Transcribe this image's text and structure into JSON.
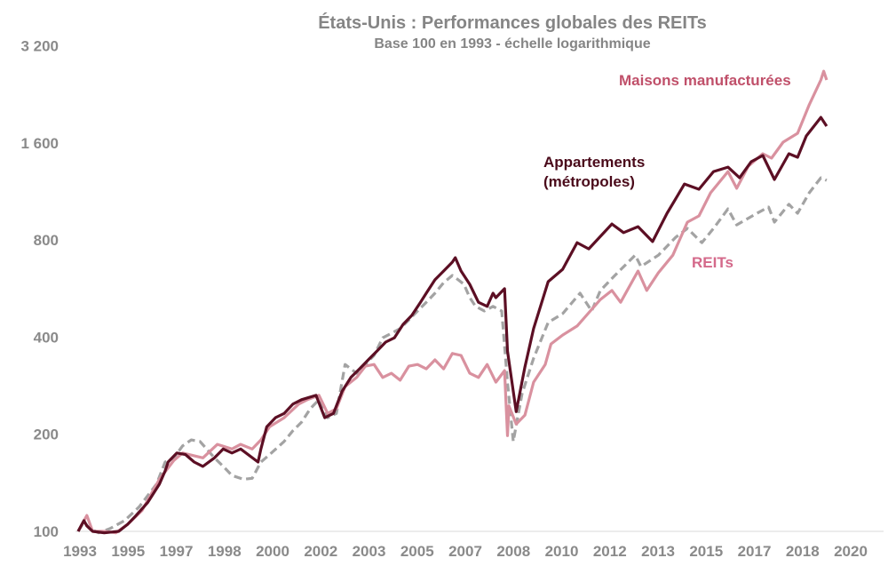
{
  "chart_data": {
    "type": "line",
    "title": "États-Unis : Performances globales des REITs",
    "subtitle": "Base 100 en 1993 - échelle logarithmique",
    "xlabel": "",
    "ylabel": "",
    "yscale": "log2",
    "ylim": [
      100,
      3200
    ],
    "xlim": [
      1993,
      2020
    ],
    "y_ticks": [
      "100",
      "200",
      "400",
      "800",
      "1 600",
      "3 200"
    ],
    "y_tick_values": [
      100,
      200,
      400,
      800,
      1600,
      3200
    ],
    "x_ticks": [
      "1993",
      "1995",
      "1997",
      "1998",
      "2000",
      "2002",
      "2003",
      "2005",
      "2007",
      "2008",
      "2010",
      "2012",
      "2013",
      "2015",
      "2017",
      "2018",
      "2020"
    ],
    "grid": false,
    "legend": "inline labels",
    "series": [
      {
        "name": "Maisons manufacturées",
        "color": "#d9919f",
        "label_color": "#c0506a",
        "style": "solid",
        "points": [
          [
            1993.0,
            100
          ],
          [
            1993.3,
            112
          ],
          [
            1993.5,
            100
          ],
          [
            1993.9,
            100
          ],
          [
            1994.3,
            99
          ],
          [
            1994.7,
            105
          ],
          [
            1995.2,
            116
          ],
          [
            1995.8,
            145
          ],
          [
            1996.3,
            166
          ],
          [
            1996.6,
            175
          ],
          [
            1997.3,
            169
          ],
          [
            1997.8,
            186
          ],
          [
            1998.3,
            180
          ],
          [
            1998.6,
            186
          ],
          [
            1999.0,
            180
          ],
          [
            1999.3,
            192
          ],
          [
            1999.6,
            211
          ],
          [
            2000.1,
            225
          ],
          [
            2000.6,
            248
          ],
          [
            2000.9,
            256
          ],
          [
            2001.3,
            264
          ],
          [
            2001.6,
            232
          ],
          [
            2001.9,
            240
          ],
          [
            2002.2,
            281
          ],
          [
            2002.6,
            300
          ],
          [
            2002.9,
            325
          ],
          [
            2003.2,
            329
          ],
          [
            2003.5,
            300
          ],
          [
            2003.8,
            309
          ],
          [
            2004.1,
            294
          ],
          [
            2004.4,
            325
          ],
          [
            2004.7,
            329
          ],
          [
            2005.0,
            319
          ],
          [
            2005.3,
            340
          ],
          [
            2005.6,
            319
          ],
          [
            2005.9,
            356
          ],
          [
            2006.2,
            351
          ],
          [
            2006.5,
            309
          ],
          [
            2006.8,
            300
          ],
          [
            2007.1,
            329
          ],
          [
            2007.4,
            290
          ],
          [
            2007.7,
            315
          ],
          [
            2007.8,
            198
          ],
          [
            2007.85,
            245
          ],
          [
            2008.1,
            215
          ],
          [
            2008.4,
            229
          ],
          [
            2008.7,
            290
          ],
          [
            2009.1,
            329
          ],
          [
            2009.3,
            381
          ],
          [
            2009.7,
            406
          ],
          [
            2010.2,
            433
          ],
          [
            2010.6,
            476
          ],
          [
            2011.0,
            523
          ],
          [
            2011.4,
            558
          ],
          [
            2011.7,
            513
          ],
          [
            2012.3,
            641
          ],
          [
            2012.6,
            558
          ],
          [
            2013.0,
            633
          ],
          [
            2013.5,
            718
          ],
          [
            2014.0,
            909
          ],
          [
            2014.4,
            950
          ],
          [
            2014.8,
            1120
          ],
          [
            2015.4,
            1304
          ],
          [
            2015.7,
            1157
          ],
          [
            2016.1,
            1355
          ],
          [
            2016.6,
            1481
          ],
          [
            2016.9,
            1435
          ],
          [
            2017.3,
            1608
          ],
          [
            2017.8,
            1713
          ],
          [
            2018.2,
            2100
          ],
          [
            2018.6,
            2507
          ],
          [
            2018.7,
            2670
          ],
          [
            2018.8,
            2507
          ]
        ]
      },
      {
        "name": "Appartements (métropoles)",
        "label_lines": [
          "Appartements",
          "(métropoles)"
        ],
        "color": "#5c0f24",
        "label_color": "#4a0a1a",
        "style": "solid",
        "points": [
          [
            1993.0,
            100
          ],
          [
            1993.2,
            108
          ],
          [
            1993.3,
            104
          ],
          [
            1993.5,
            100
          ],
          [
            1993.9,
            99
          ],
          [
            1994.4,
            100
          ],
          [
            1994.7,
            105
          ],
          [
            1995.0,
            112
          ],
          [
            1995.4,
            123
          ],
          [
            1995.8,
            140
          ],
          [
            1996.0,
            154
          ],
          [
            1996.1,
            164
          ],
          [
            1996.4,
            175
          ],
          [
            1996.7,
            173
          ],
          [
            1997.0,
            164
          ],
          [
            1997.3,
            159
          ],
          [
            1997.7,
            169
          ],
          [
            1998.0,
            180
          ],
          [
            1998.3,
            175
          ],
          [
            1998.6,
            180
          ],
          [
            1999.2,
            164
          ],
          [
            1999.3,
            180
          ],
          [
            1999.5,
            211
          ],
          [
            1999.8,
            225
          ],
          [
            2000.1,
            232
          ],
          [
            2000.4,
            248
          ],
          [
            2000.7,
            256
          ],
          [
            2001.2,
            264
          ],
          [
            2001.5,
            225
          ],
          [
            2001.8,
            232
          ],
          [
            2002.1,
            272
          ],
          [
            2002.4,
            300
          ],
          [
            2002.7,
            319
          ],
          [
            2003.0,
            340
          ],
          [
            2003.3,
            362
          ],
          [
            2003.6,
            386
          ],
          [
            2003.9,
            398
          ],
          [
            2004.2,
            438
          ],
          [
            2004.5,
            467
          ],
          [
            2004.8,
            513
          ],
          [
            2005.0,
            547
          ],
          [
            2005.3,
            602
          ],
          [
            2005.6,
            641
          ],
          [
            2005.9,
            683
          ],
          [
            2006.0,
            705
          ],
          [
            2006.2,
            641
          ],
          [
            2006.5,
            583
          ],
          [
            2006.8,
            513
          ],
          [
            2007.1,
            498
          ],
          [
            2007.3,
            547
          ],
          [
            2007.4,
            530
          ],
          [
            2007.7,
            565
          ],
          [
            2007.8,
            362
          ],
          [
            2008.1,
            235
          ],
          [
            2008.4,
            323
          ],
          [
            2008.7,
            425
          ],
          [
            2009.2,
            594
          ],
          [
            2009.7,
            649
          ],
          [
            2010.2,
            785
          ],
          [
            2010.6,
            751
          ],
          [
            2011.4,
            897
          ],
          [
            2011.8,
            843
          ],
          [
            2012.3,
            880
          ],
          [
            2012.8,
            791
          ],
          [
            2013.3,
            968
          ],
          [
            2013.9,
            1193
          ],
          [
            2014.4,
            1149
          ],
          [
            2014.9,
            1304
          ],
          [
            2015.4,
            1346
          ],
          [
            2015.8,
            1247
          ],
          [
            2016.2,
            1399
          ],
          [
            2016.6,
            1462
          ],
          [
            2017.0,
            1232
          ],
          [
            2017.5,
            1481
          ],
          [
            2017.8,
            1444
          ],
          [
            2018.1,
            1681
          ],
          [
            2018.6,
            1920
          ],
          [
            2018.8,
            1803
          ]
        ]
      },
      {
        "name": "REITs",
        "color": "#a3a3a3",
        "label_color": "#d4698a",
        "style": "dashed",
        "points": [
          [
            1993.0,
            100
          ],
          [
            1993.2,
            107
          ],
          [
            1993.4,
            102
          ],
          [
            1993.7,
            99
          ],
          [
            1994.1,
            102
          ],
          [
            1994.6,
            108
          ],
          [
            1995.1,
            119
          ],
          [
            1995.7,
            140
          ],
          [
            1996.0,
            164
          ],
          [
            1996.3,
            169
          ],
          [
            1996.6,
            184
          ],
          [
            1996.9,
            192
          ],
          [
            1997.2,
            190
          ],
          [
            1997.7,
            169
          ],
          [
            1998.0,
            159
          ],
          [
            1998.3,
            149
          ],
          [
            1998.7,
            145
          ],
          [
            1999.0,
            146
          ],
          [
            1999.3,
            164
          ],
          [
            1999.6,
            173
          ],
          [
            2000.1,
            190
          ],
          [
            2000.4,
            205
          ],
          [
            2000.7,
            218
          ],
          [
            2001.0,
            240
          ],
          [
            2001.3,
            256
          ],
          [
            2001.6,
            225
          ],
          [
            2001.9,
            232
          ],
          [
            2002.2,
            329
          ],
          [
            2002.6,
            309
          ],
          [
            2002.9,
            329
          ],
          [
            2003.2,
            351
          ],
          [
            2003.5,
            398
          ],
          [
            2003.8,
            411
          ],
          [
            2004.1,
            425
          ],
          [
            2004.4,
            452
          ],
          [
            2004.7,
            482
          ],
          [
            2005.0,
            513
          ],
          [
            2005.3,
            547
          ],
          [
            2005.6,
            590
          ],
          [
            2005.9,
            621
          ],
          [
            2006.1,
            602
          ],
          [
            2006.3,
            583
          ],
          [
            2006.5,
            530
          ],
          [
            2006.7,
            498
          ],
          [
            2007.0,
            482
          ],
          [
            2007.3,
            498
          ],
          [
            2007.6,
            482
          ],
          [
            2007.8,
            290
          ],
          [
            2008.0,
            190
          ],
          [
            2008.3,
            267
          ],
          [
            2008.7,
            344
          ],
          [
            2009.2,
            444
          ],
          [
            2009.7,
            473
          ],
          [
            2010.3,
            547
          ],
          [
            2010.7,
            482
          ],
          [
            2011.0,
            558
          ],
          [
            2011.5,
            621
          ],
          [
            2012.2,
            718
          ],
          [
            2012.4,
            662
          ],
          [
            2013.0,
            718
          ],
          [
            2013.6,
            816
          ],
          [
            2014.0,
            869
          ],
          [
            2014.5,
            785
          ],
          [
            2014.9,
            869
          ],
          [
            2015.4,
            999
          ],
          [
            2015.7,
            891
          ],
          [
            2016.4,
            968
          ],
          [
            2016.8,
            1012
          ],
          [
            2017.0,
            909
          ],
          [
            2017.5,
            1032
          ],
          [
            2017.8,
            968
          ],
          [
            2018.2,
            1120
          ],
          [
            2018.6,
            1247
          ],
          [
            2018.8,
            1224
          ]
        ]
      }
    ]
  }
}
